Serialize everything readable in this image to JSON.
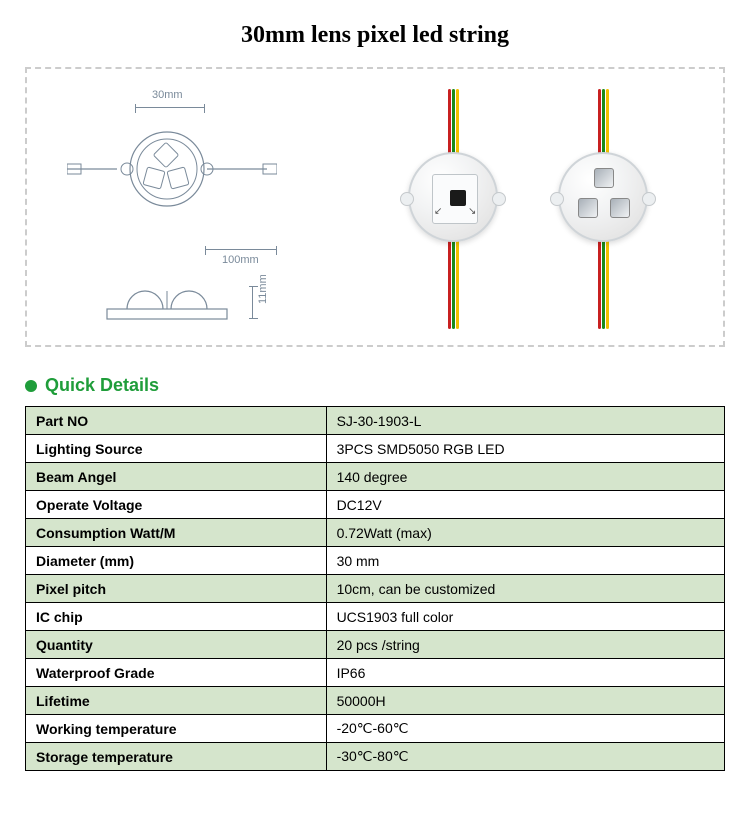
{
  "page": {
    "title": "30mm lens pixel led string",
    "title_fontsize": 24,
    "title_font": "Times New Roman",
    "background": "#ffffff"
  },
  "diagram": {
    "border_color": "#cccccc",
    "border_style": "dashed",
    "dim_30mm": "30mm",
    "dim_100mm": "100mm",
    "dim_11mm": "11mm",
    "label_color": "#7a8a9a"
  },
  "photo": {
    "wire_colors": [
      "#c82020",
      "#1a8a1a",
      "#f0c000"
    ],
    "module_fill": "#eceff1",
    "module_border": "#cfd4d8",
    "ic_color": "#1a1a1a"
  },
  "section": {
    "heading_text": "Quick Details",
    "heading_color": "#1f9d3a",
    "bullet_color": "#1f9d3a"
  },
  "table": {
    "border_color": "#000000",
    "row_shade_color": "#d5e5cc",
    "row_plain_color": "#ffffff",
    "font_size": 14,
    "rows": [
      {
        "label": "Part NO",
        "value": "SJ-30-1903-L",
        "shaded": true
      },
      {
        "label": "Lighting Source",
        "value": "3PCS SMD5050 RGB LED",
        "shaded": false
      },
      {
        "label": "Beam Angel",
        "value": "140 degree",
        "shaded": true
      },
      {
        "label": "Operate Voltage",
        "value": "DC12V",
        "shaded": false
      },
      {
        "label": "Consumption Watt/M",
        "value": "0.72Watt (max)",
        "shaded": true
      },
      {
        "label": "Diameter (mm)",
        "value": "30 mm",
        "shaded": false
      },
      {
        "label": "Pixel pitch",
        "value": "10cm, can be customized",
        "shaded": true
      },
      {
        "label": "IC chip",
        "value": "UCS1903 full color",
        "shaded": false
      },
      {
        "label": "Quantity",
        "value": "20 pcs /string",
        "shaded": true
      },
      {
        "label": "Waterproof Grade",
        "value": "IP66",
        "shaded": false
      },
      {
        "label": "Lifetime",
        "value": "50000H",
        "shaded": true
      },
      {
        "label": "Working temperature",
        "value": "-20℃-60℃",
        "shaded": false
      },
      {
        "label": "Storage temperature",
        "value": "-30℃-80℃",
        "shaded": true
      }
    ]
  }
}
